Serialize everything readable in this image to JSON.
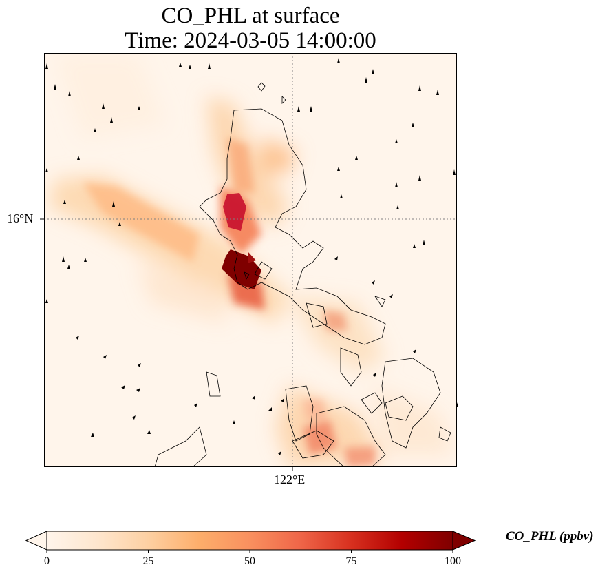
{
  "title_line1": "CO_PHL at surface",
  "title_line2": "Time: 2024-03-05 14:00:00",
  "lat_label": "16°N",
  "lon_label": "122°E",
  "colorbar": {
    "label": "CO_PHL (ppbv)",
    "ticks": [
      "0",
      "25",
      "50",
      "75",
      "100"
    ],
    "min": 0,
    "max": 100,
    "colormap": [
      "#fff5eb",
      "#fee6ce",
      "#fdd0a2",
      "#fdae6b",
      "#fd8d3c",
      "#f16913",
      "#d94801",
      "#a63603",
      "#7f2704"
    ]
  },
  "colors": {
    "background": "#fff5eb",
    "coastline": "#000000",
    "gridline": "#808080",
    "hotspot": "#7f0000"
  }
}
